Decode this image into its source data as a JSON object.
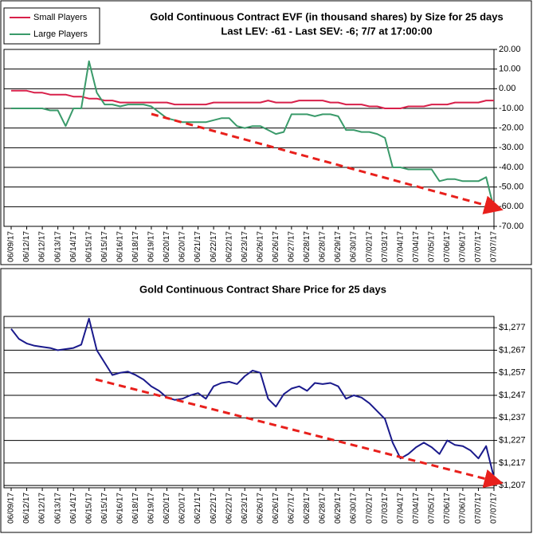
{
  "chart_data": [
    {
      "type": "line",
      "title": "Gold Continuous Contract EVF (in thousand shares) by Size for 25 days",
      "subtitle": "Last LEV: -61 - Last SEV: -6; 7/7 at 17:00:00",
      "categories": [
        "06/09/17",
        null,
        "06/12/17",
        null,
        "06/12/17",
        null,
        "06/13/17",
        null,
        "06/14/17",
        null,
        "06/15/17",
        null,
        "06/15/17",
        null,
        "06/16/17",
        null,
        "06/18/17",
        null,
        "06/19/17",
        null,
        "06/20/17",
        null,
        "06/20/17",
        null,
        "06/21/17",
        null,
        "06/22/17",
        null,
        "06/22/17",
        null,
        "06/23/17",
        null,
        "06/26/17",
        null,
        "06/26/17",
        null,
        "06/27/17",
        null,
        "06/28/17",
        null,
        "06/28/17",
        null,
        "06/29/17",
        null,
        "06/30/17",
        null,
        "07/02/17",
        null,
        "07/03/17",
        null,
        "07/04/17",
        null,
        "07/04/17",
        null,
        "07/05/17",
        null,
        "07/06/17",
        null,
        "07/06/17",
        null,
        "07/07/17",
        null,
        "07/07/17"
      ],
      "series": [
        {
          "name": "Small Players",
          "color": "#d8204a",
          "values": [
            -1,
            -1,
            -1,
            -2,
            -2,
            -3,
            -3,
            -3,
            -4,
            -4,
            -5,
            -5,
            -6,
            -6,
            -7,
            -7,
            -7,
            -7,
            -7,
            -7,
            -7,
            -8,
            -8,
            -8,
            -8,
            -8,
            -7,
            -7,
            -7,
            -7,
            -7,
            -7,
            -7,
            -6,
            -7,
            -7,
            -7,
            -6,
            -6,
            -6,
            -6,
            -7,
            -7,
            -8,
            -8,
            -8,
            -9,
            -9,
            -10,
            -10,
            -10,
            -9,
            -9,
            -9,
            -8,
            -8,
            -8,
            -7,
            -7,
            -7,
            -7,
            -6,
            -6
          ]
        },
        {
          "name": "Large Players",
          "color": "#3a9a6a",
          "values": [
            -10,
            -10,
            -10,
            -10,
            -10,
            -11,
            -11,
            -19,
            -10,
            -10,
            14,
            -2,
            -8,
            -8,
            -9,
            -8,
            -8,
            -8,
            -9,
            -12,
            -15,
            -16,
            -17,
            -17,
            -17,
            -17,
            -16,
            -15,
            -15,
            -19,
            -20,
            -19,
            -19,
            -21,
            -23,
            -22,
            -13,
            -13,
            -13,
            -14,
            -13,
            -13,
            -14,
            -21,
            -21,
            -22,
            -22,
            -23,
            -25,
            -40,
            -40,
            -41,
            -41,
            -41,
            -41,
            -47,
            -46,
            -46,
            -47,
            -47,
            -47,
            -45,
            -61
          ]
        }
      ],
      "ylim": [
        -70,
        20
      ],
      "yticks": [
        {
          "value": 20,
          "label": "20.00"
        },
        {
          "value": 10,
          "label": "10.00"
        },
        {
          "value": 0,
          "label": "0.00"
        },
        {
          "value": -10,
          "label": "-10.00"
        },
        {
          "value": -20,
          "label": "-20.00"
        },
        {
          "value": -30,
          "label": "-30.00"
        },
        {
          "value": -40,
          "label": "-40.00"
        },
        {
          "value": -50,
          "label": "-50.00"
        },
        {
          "value": -60,
          "label": "-60.00"
        },
        {
          "value": -70,
          "label": "-70.00"
        }
      ],
      "grid": true,
      "legend": "top-left"
    },
    {
      "type": "line",
      "title": "Gold Continuous Contract Share Price for 25 days",
      "categories": [
        "06/09/17",
        null,
        "06/12/17",
        null,
        "06/12/17",
        null,
        "06/13/17",
        null,
        "06/14/17",
        null,
        "06/15/17",
        null,
        "06/15/17",
        null,
        "06/16/17",
        null,
        "06/18/17",
        null,
        "06/19/17",
        null,
        "06/20/17",
        null,
        "06/20/17",
        null,
        "06/21/17",
        null,
        "06/22/17",
        null,
        "06/22/17",
        null,
        "06/23/17",
        null,
        "06/26/17",
        null,
        "06/26/17",
        null,
        "06/27/17",
        null,
        "06/28/17",
        null,
        "06/28/17",
        null,
        "06/29/17",
        null,
        "06/30/17",
        null,
        "07/02/17",
        null,
        "07/03/17",
        null,
        "07/04/17",
        null,
        "07/04/17",
        null,
        "07/05/17",
        null,
        "07/06/17",
        null,
        "07/06/17",
        null,
        "07/07/17",
        null,
        "07/07/17"
      ],
      "series": [
        {
          "color": "#1a1a8c",
          "values": [
            1276.5,
            1272,
            1270,
            1269,
            1268.5,
            1268,
            1267,
            1267.5,
            1268,
            1269.5,
            1281,
            1267,
            1261.5,
            1256,
            1257,
            1257.5,
            1256,
            1254,
            1251,
            1249,
            1246,
            1245,
            1245.5,
            1247,
            1248,
            1245.5,
            1251,
            1252.5,
            1253,
            1252,
            1255.5,
            1258,
            1257,
            1245.5,
            1242,
            1247.5,
            1250,
            1251,
            1249,
            1252.5,
            1252,
            1252.5,
            1251,
            1245.5,
            1247,
            1246,
            1243.5,
            1240,
            1236.5,
            1226,
            1219,
            1221,
            1224,
            1226,
            1224,
            1221,
            1227,
            1225,
            1224.5,
            1222.5,
            1219,
            1224.5,
            1210.5
          ]
        }
      ],
      "ylim": [
        1206,
        1282
      ],
      "yticks": [
        {
          "value": 1277,
          "label": "$1,277"
        },
        {
          "value": 1267,
          "label": "$1,267"
        },
        {
          "value": 1257,
          "label": "$1,257"
        },
        {
          "value": 1247,
          "label": "$1,247"
        },
        {
          "value": 1237,
          "label": "$1,237"
        },
        {
          "value": 1227,
          "label": "$1,227"
        },
        {
          "value": 1217,
          "label": "$1,217"
        },
        {
          "value": 1207,
          "label": "$1,207"
        }
      ],
      "grid": true
    }
  ]
}
